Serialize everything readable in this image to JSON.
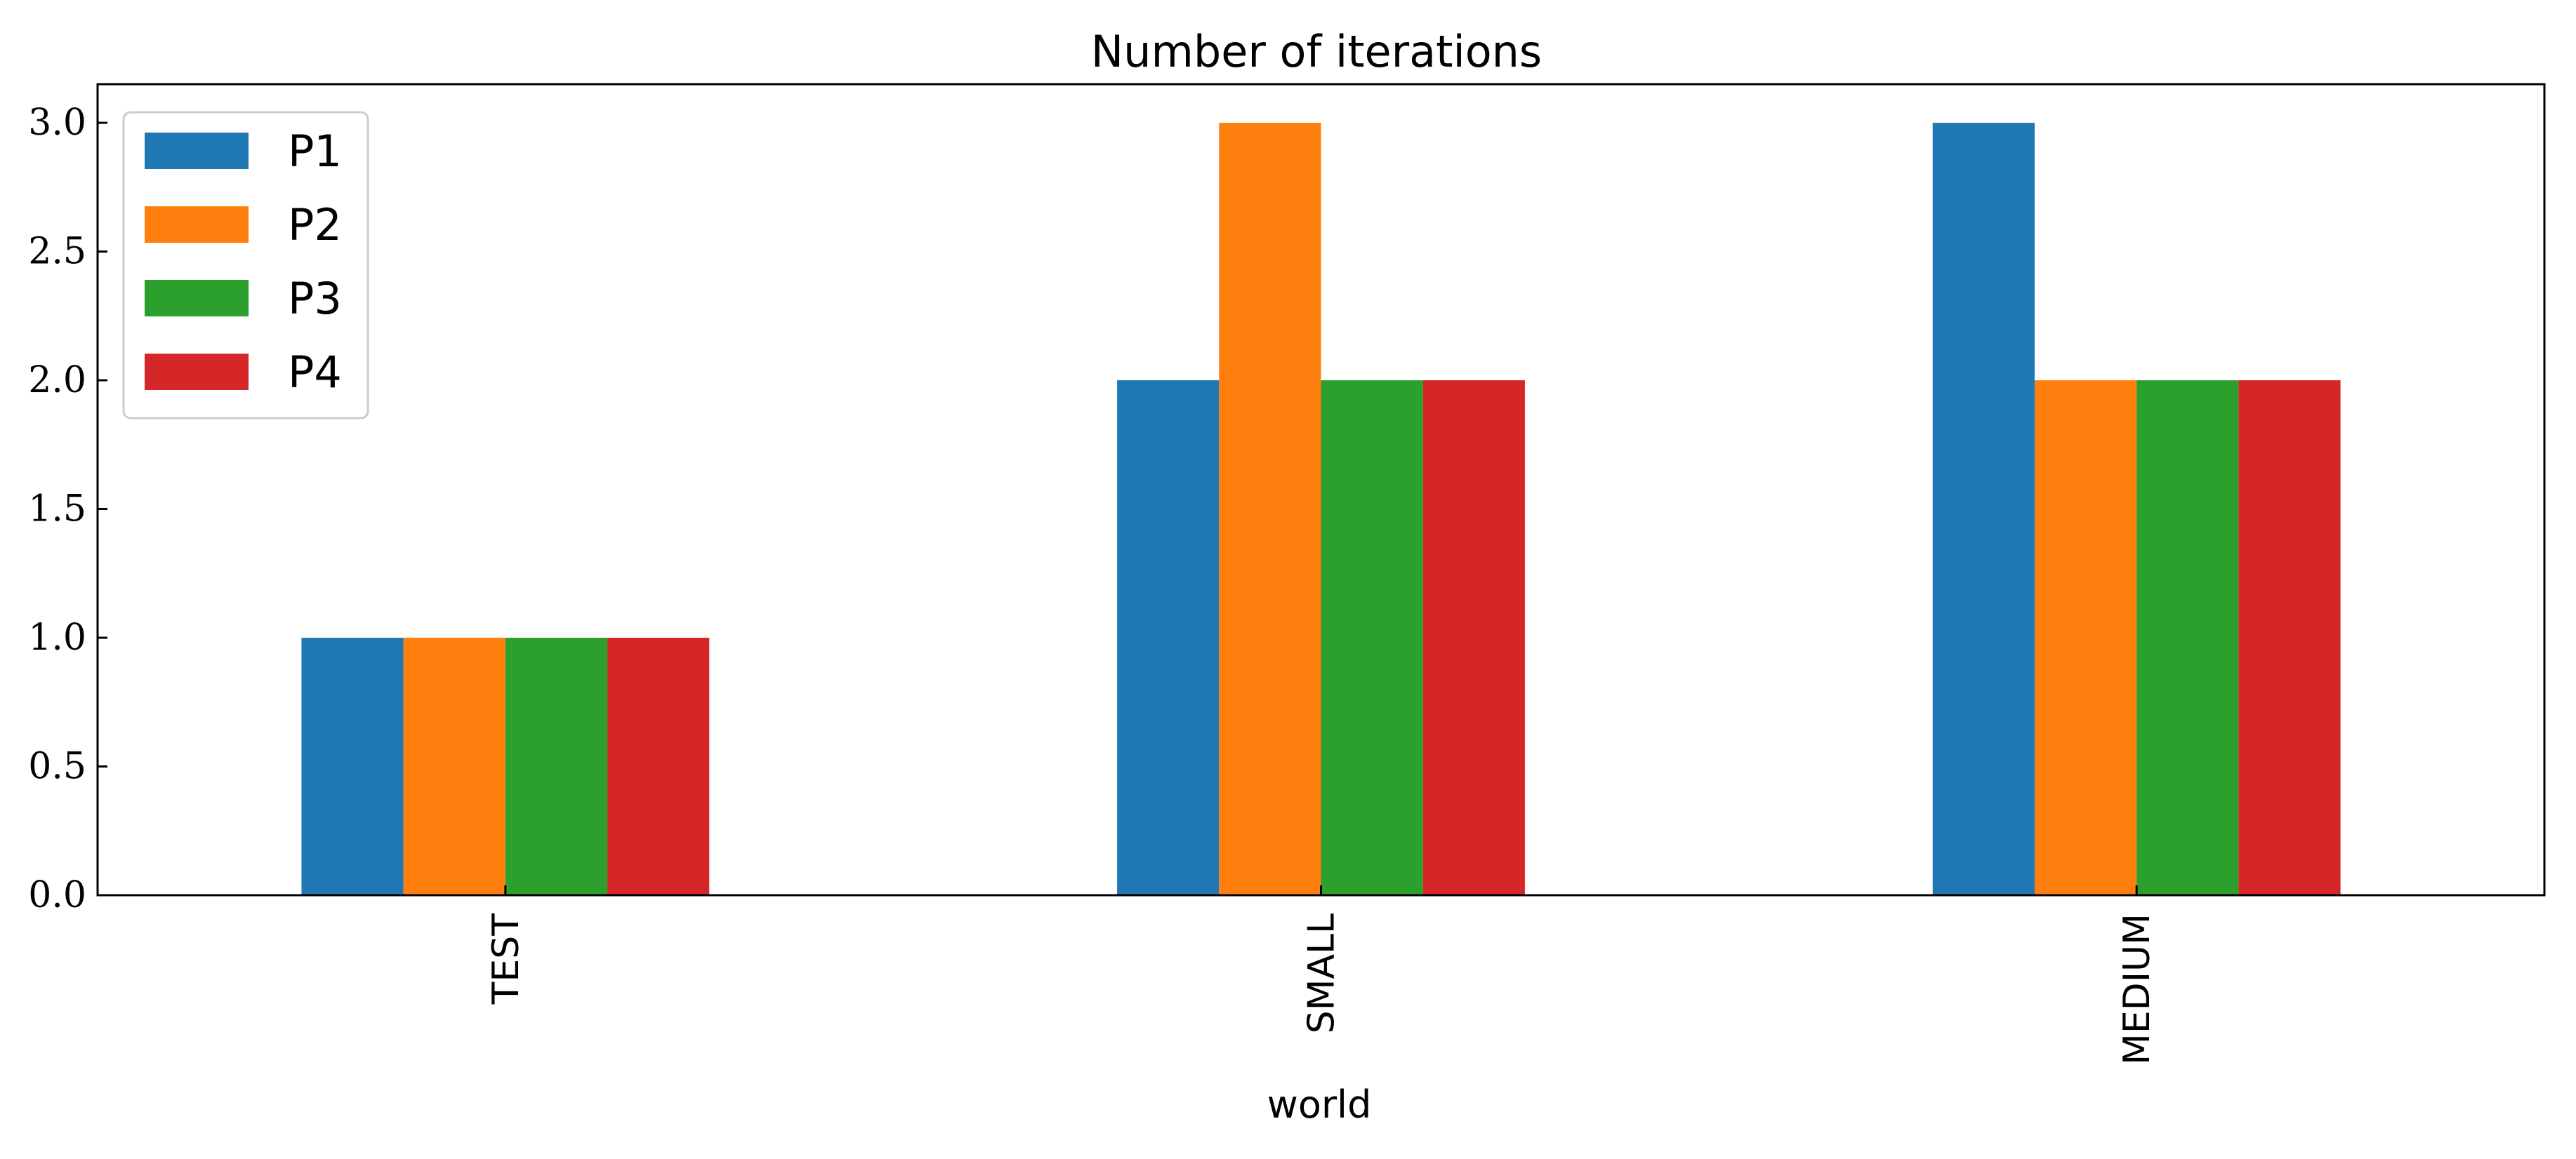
{
  "chart_data": {
    "type": "bar",
    "title": "Number of iterations",
    "xlabel": "world",
    "ylabel": "",
    "categories": [
      "TEST",
      "SMALL",
      "MEDIUM"
    ],
    "series": [
      {
        "name": "P1",
        "values": [
          1,
          2,
          3
        ],
        "color": "#1f77b4"
      },
      {
        "name": "P2",
        "values": [
          1,
          3,
          2
        ],
        "color": "#ff7f0e"
      },
      {
        "name": "P3",
        "values": [
          1,
          2,
          2
        ],
        "color": "#2ca02c"
      },
      {
        "name": "P4",
        "values": [
          1,
          2,
          2
        ],
        "color": "#d62728"
      }
    ],
    "ylim": [
      0,
      3.15
    ],
    "yticks": [
      0,
      0.5,
      1,
      1.5,
      2,
      2.5,
      3
    ],
    "ytick_labels": [
      "0.0",
      "0.5",
      "1.0",
      "1.5",
      "2.0",
      "2.5",
      "3.0"
    ],
    "grid": false,
    "legend_position": "top-left"
  }
}
